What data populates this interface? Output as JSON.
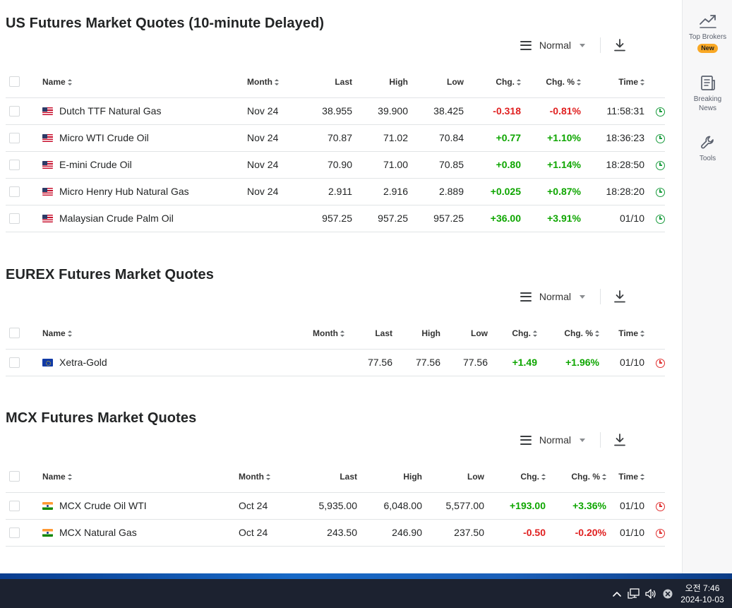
{
  "sections": [
    {
      "title": "US Futures Market Quotes (10-minute Delayed)",
      "view_label": "Normal",
      "headers": {
        "name": "Name",
        "month": "Month",
        "last": "Last",
        "high": "High",
        "low": "Low",
        "chg": "Chg.",
        "chgp": "Chg. %",
        "time": "Time"
      },
      "rows": [
        {
          "flag": "us",
          "name": "Dutch TTF Natural Gas",
          "month": "Nov 24",
          "last": "38.955",
          "high": "39.900",
          "low": "38.425",
          "chg": "-0.318",
          "chgp": "-0.81%",
          "time": "11:58:31",
          "status": "open"
        },
        {
          "flag": "us",
          "name": "Micro WTI Crude Oil",
          "month": "Nov 24",
          "last": "70.87",
          "high": "71.02",
          "low": "70.84",
          "chg": "+0.77",
          "chgp": "+1.10%",
          "time": "18:36:23",
          "status": "open"
        },
        {
          "flag": "us",
          "name": "E-mini Crude Oil",
          "month": "Nov 24",
          "last": "70.90",
          "high": "71.00",
          "low": "70.85",
          "chg": "+0.80",
          "chgp": "+1.14%",
          "time": "18:28:50",
          "status": "open"
        },
        {
          "flag": "us",
          "name": "Micro Henry Hub Natural Gas",
          "month": "Nov 24",
          "last": "2.911",
          "high": "2.916",
          "low": "2.889",
          "chg": "+0.025",
          "chgp": "+0.87%",
          "time": "18:28:20",
          "status": "open"
        },
        {
          "flag": "us",
          "name": "Malaysian Crude Palm Oil",
          "month": "",
          "last": "957.25",
          "high": "957.25",
          "low": "957.25",
          "chg": "+36.00",
          "chgp": "+3.91%",
          "time": "01/10",
          "status": "open"
        }
      ]
    },
    {
      "title": "EUREX Futures Market Quotes",
      "view_label": "Normal",
      "headers": {
        "name": "Name",
        "month": "Month",
        "last": "Last",
        "high": "High",
        "low": "Low",
        "chg": "Chg.",
        "chgp": "Chg. %",
        "time": "Time"
      },
      "rows": [
        {
          "flag": "eu",
          "name": "Xetra-Gold",
          "month": "",
          "last": "77.56",
          "high": "77.56",
          "low": "77.56",
          "chg": "+1.49",
          "chgp": "+1.96%",
          "time": "01/10",
          "status": "closed"
        }
      ]
    },
    {
      "title": "MCX Futures Market Quotes",
      "view_label": "Normal",
      "headers": {
        "name": "Name",
        "month": "Month",
        "last": "Last",
        "high": "High",
        "low": "Low",
        "chg": "Chg.",
        "chgp": "Chg. %",
        "time": "Time"
      },
      "rows": [
        {
          "flag": "in",
          "name": "MCX Crude Oil WTI",
          "month": "Oct 24",
          "last": "5,935.00",
          "high": "6,048.00",
          "low": "5,577.00",
          "chg": "+193.00",
          "chgp": "+3.36%",
          "time": "01/10",
          "status": "closed"
        },
        {
          "flag": "in",
          "name": "MCX Natural Gas",
          "month": "Oct 24",
          "last": "243.50",
          "high": "246.90",
          "low": "237.50",
          "chg": "-0.50",
          "chgp": "-0.20%",
          "time": "01/10",
          "status": "closed"
        }
      ]
    }
  ],
  "sidebar": {
    "items": [
      {
        "label": "Top Brokers",
        "badge": "New",
        "icon": "trending-up-icon"
      },
      {
        "label": "Breaking News",
        "icon": "news-icon"
      },
      {
        "label": "Tools",
        "icon": "wrench-icon"
      }
    ]
  },
  "taskbar": {
    "time": "오전 7:46",
    "date": "2024-10-03",
    "tray_icons": [
      "chevron-up-icon",
      "network-icon",
      "volume-icon",
      "close-circle-icon"
    ]
  },
  "colors": {
    "positive": "#0ea600",
    "negative": "#e02020",
    "market_open": "#1a9c3e",
    "market_closed": "#e03030",
    "badge": "#f9a825"
  }
}
